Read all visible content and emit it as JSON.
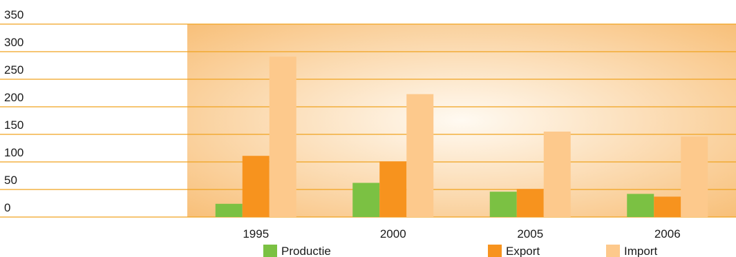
{
  "chart_data": {
    "type": "bar",
    "categories": [
      "1995",
      "2000",
      "2005",
      "2006"
    ],
    "series": [
      {
        "name": "Productie",
        "values": [
          24,
          62,
          46,
          42
        ]
      },
      {
        "name": "Export",
        "values": [
          111,
          101,
          51,
          37
        ]
      },
      {
        "name": "Import",
        "values": [
          291,
          223,
          155,
          146
        ]
      }
    ],
    "ylim": [
      0,
      350
    ],
    "yticks": [
      0,
      50,
      100,
      150,
      200,
      250,
      300,
      350
    ],
    "title": "",
    "xlabel": "",
    "ylabel": "",
    "grid": true,
    "legend_position": "bottom",
    "colors": {
      "Productie": "#7bc143",
      "Export": "#f7931e",
      "Import": "#fdc98c",
      "gridline": "#f0a21e",
      "plot_edge": "#f8c07a",
      "plot_center": "#fffaf2"
    }
  }
}
